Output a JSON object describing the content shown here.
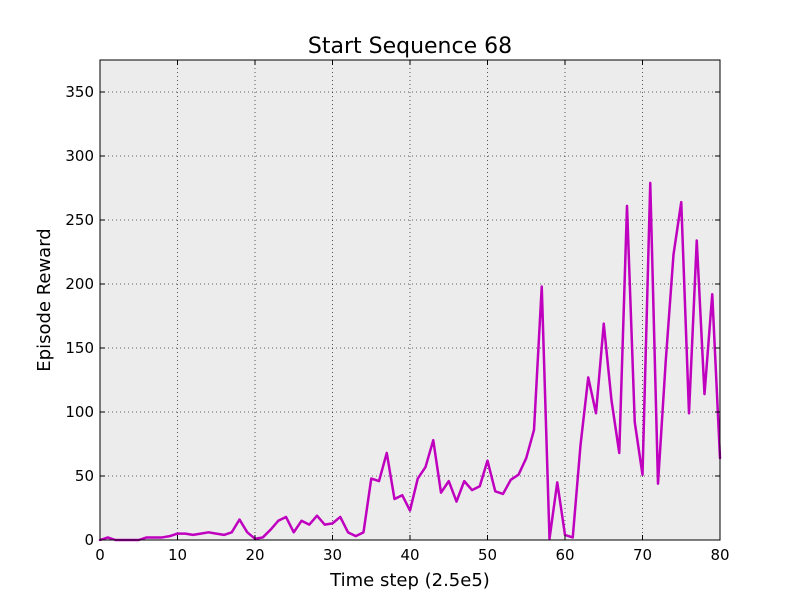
{
  "chart_data": {
    "type": "line",
    "title": "Start Sequence 68",
    "xlabel": "Time step (2.5e5)",
    "ylabel": "Episode Reward",
    "xlim": [
      0,
      80
    ],
    "ylim": [
      0,
      375
    ],
    "xticks": [
      0,
      10,
      20,
      30,
      40,
      50,
      60,
      70,
      80
    ],
    "yticks": [
      0,
      50,
      100,
      150,
      200,
      250,
      300,
      350
    ],
    "grid": true,
    "background_color": "#ececec",
    "series": [
      {
        "color": "#bf00bf",
        "x": [
          0,
          1,
          2,
          3,
          4,
          5,
          6,
          7,
          8,
          9,
          10,
          11,
          12,
          13,
          14,
          15,
          16,
          17,
          18,
          19,
          20,
          21,
          22,
          23,
          24,
          25,
          26,
          27,
          28,
          29,
          30,
          31,
          32,
          33,
          34,
          35,
          36,
          37,
          38,
          39,
          40,
          41,
          42,
          43,
          44,
          45,
          46,
          47,
          48,
          49,
          50,
          51,
          52,
          53,
          54,
          55,
          56,
          57,
          58,
          59,
          60,
          61,
          62,
          63,
          64,
          65,
          66,
          67,
          68,
          69,
          70,
          71,
          72,
          73,
          74,
          75,
          76,
          77,
          78,
          79,
          80
        ],
        "y": [
          0,
          2,
          0,
          0,
          0,
          0,
          2,
          2,
          2,
          3,
          5,
          5,
          4,
          5,
          6,
          5,
          4,
          6,
          16,
          6,
          1,
          2,
          8,
          15,
          18,
          6,
          15,
          12,
          19,
          12,
          13,
          18,
          6,
          3,
          6,
          48,
          46,
          68,
          32,
          35,
          23,
          48,
          57,
          78,
          37,
          46,
          30,
          46,
          39,
          42,
          62,
          38,
          36,
          47,
          51,
          64,
          86,
          198,
          1,
          45,
          4,
          2,
          74,
          127,
          99,
          169,
          109,
          68,
          261,
          92,
          51,
          279,
          44,
          140,
          223,
          264,
          99,
          234,
          114,
          192,
          64
        ]
      }
    ]
  }
}
